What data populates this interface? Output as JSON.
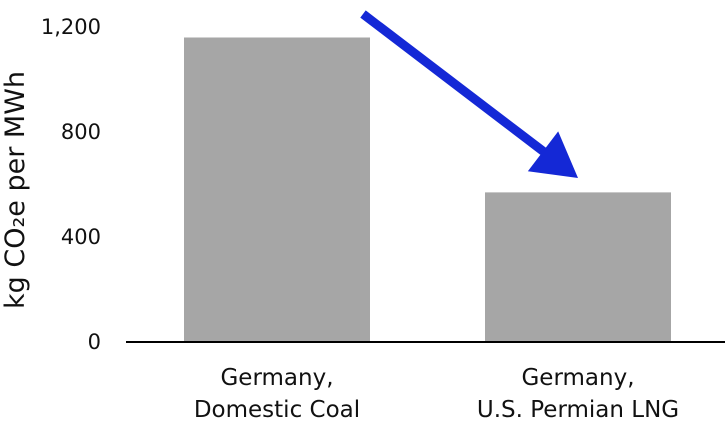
{
  "chart_data": {
    "type": "bar",
    "title": "",
    "xlabel": "",
    "ylabel": "kg CO₂e per MWh",
    "ylim": [
      0,
      1200
    ],
    "yticks": [
      0,
      400,
      800,
      1200
    ],
    "ytick_labels": [
      "0",
      "400",
      "800",
      "1,200"
    ],
    "categories": [
      [
        "Germany,",
        "Domestic Coal"
      ],
      [
        "Germany,",
        "U.S. Permian LNG"
      ]
    ],
    "values": [
      1160,
      570
    ],
    "grid": false,
    "legend": "none",
    "colors": {
      "bar": "#a6a6a6",
      "axis": "#000000",
      "arrow": "#1428d6"
    },
    "annotations": [
      {
        "type": "arrow",
        "from_category": 0,
        "to_category": 1,
        "meaning": "decrease"
      }
    ]
  }
}
